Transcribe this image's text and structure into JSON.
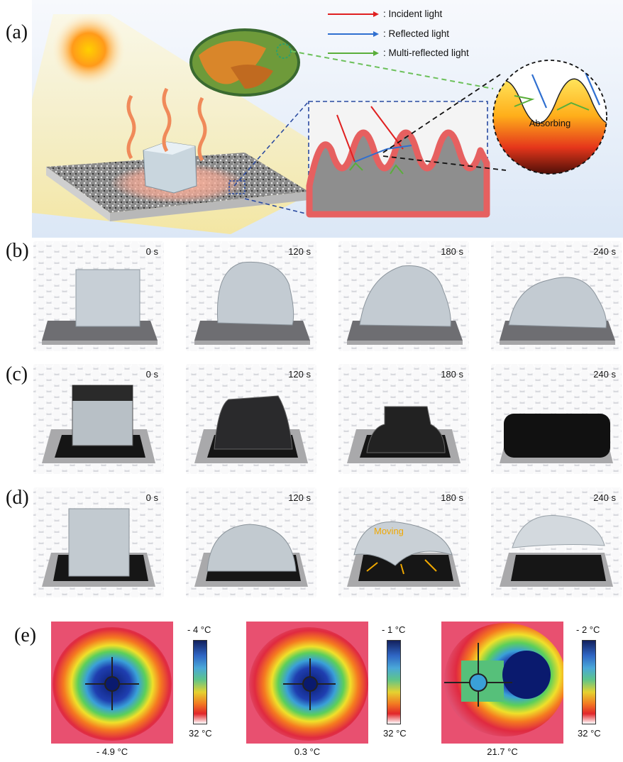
{
  "panel_labels": {
    "a": "(a)",
    "b": "(b)",
    "c": "(c)",
    "d": "(d)",
    "e": "(e)"
  },
  "panel_a": {
    "legend": [
      {
        "label": ": Incident light",
        "color": "#e02020"
      },
      {
        "label": ": Reflected light",
        "color": "#2f6fd0"
      },
      {
        "label": ": Multi-reflected light",
        "color": "#5aae3a"
      }
    ],
    "absorbing_label": "Absorbing"
  },
  "rows": {
    "b": {
      "times": [
        "0 s",
        "120 s",
        "180 s",
        "240 s"
      ]
    },
    "c": {
      "times": [
        "0 s",
        "120 s",
        "180 s",
        "240 s"
      ]
    },
    "d": {
      "times": [
        "0 s",
        "120 s",
        "180 s",
        "240 s"
      ],
      "moving_label": "Moving"
    }
  },
  "thermal": [
    {
      "max_label": "- 4 °C",
      "min_label": "32 °C",
      "reading": "- 4.9 °C"
    },
    {
      "max_label": "- 1 °C",
      "min_label": "32 °C",
      "reading": "0.3 °C"
    },
    {
      "max_label": "- 2 °C",
      "min_label": "32 °C",
      "reading": "21.7 °C"
    }
  ],
  "colors": {
    "incident": "#e02020",
    "reflected": "#2f6fd0",
    "multi": "#5aae3a",
    "moving": "#f0a800"
  }
}
